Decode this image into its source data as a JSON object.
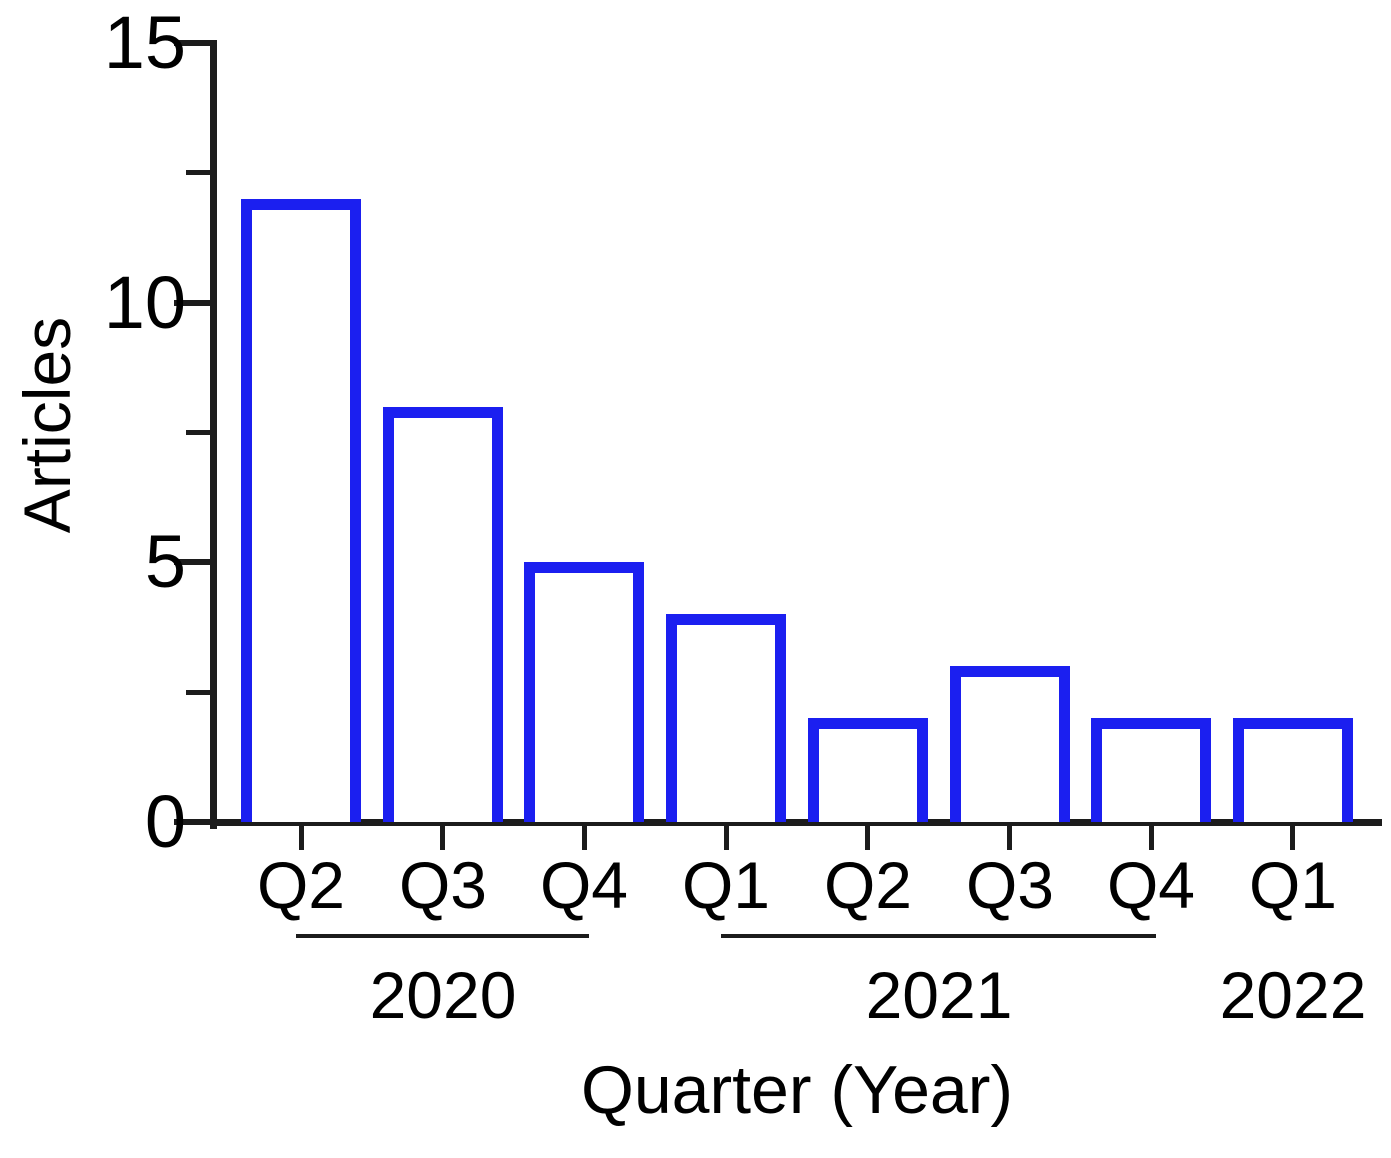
{
  "chart_data": {
    "type": "bar",
    "title": "",
    "xlabel": "Quarter (Year)",
    "ylabel": "Articles",
    "ylim": [
      0,
      15
    ],
    "yticks": [
      0,
      5,
      10,
      15
    ],
    "minor_yticks": [
      2.5,
      7.5,
      12.5
    ],
    "categories": [
      "Q2",
      "Q3",
      "Q4",
      "Q1",
      "Q2",
      "Q3",
      "Q4",
      "Q1"
    ],
    "values": [
      12,
      8,
      5,
      4,
      2,
      3,
      2,
      2
    ],
    "year_groups": [
      {
        "label": "2020",
        "start_index": 0,
        "end_index": 2,
        "underline": true
      },
      {
        "label": "2021",
        "start_index": 3,
        "end_index": 6,
        "underline": true
      },
      {
        "label": "2022",
        "start_index": 7,
        "end_index": 7,
        "underline": false
      }
    ],
    "bar_style": {
      "fill": "#ffffff",
      "stroke": "#1b1ff0"
    },
    "axis_color": "#1c1c1c",
    "text_color": "#000000",
    "grid": false,
    "legend": null
  }
}
